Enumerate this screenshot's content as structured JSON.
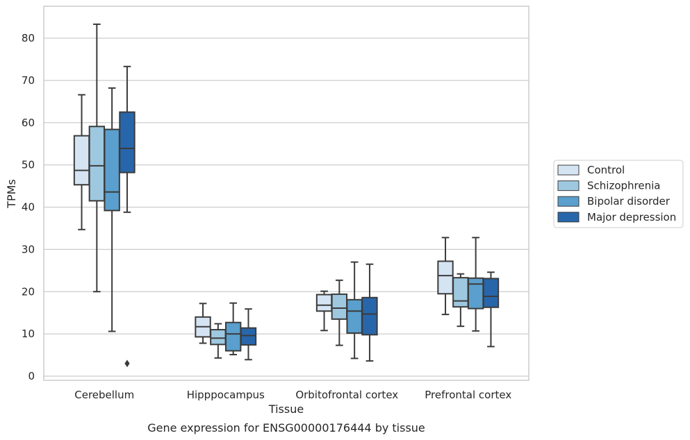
{
  "caption": "Gene expression for ENSG00000176444 by tissue",
  "chart_data": {
    "type": "box",
    "title": "",
    "xlabel": "Tissue",
    "ylabel": "TPMs",
    "ylim": [
      -1,
      88
    ],
    "yticks": [
      0,
      10,
      20,
      30,
      40,
      50,
      60,
      70,
      80
    ],
    "grid": "horizontal",
    "legend_position": "right",
    "categories": [
      "Cerebellum",
      "Hipppocampus",
      "Orbitofrontal cortex",
      "Prefrontal cortex"
    ],
    "series": [
      {
        "name": "Control",
        "color": "#d5e4f3",
        "boxes": [
          {
            "whisker_low": 34.7,
            "q1": 45.3,
            "median": 48.7,
            "q3": 56.9,
            "whisker_high": 66.6,
            "outliers": []
          },
          {
            "whisker_low": 7.8,
            "q1": 9.3,
            "median": 11.7,
            "q3": 14.0,
            "whisker_high": 17.2,
            "outliers": []
          },
          {
            "whisker_low": 10.8,
            "q1": 15.4,
            "median": 16.8,
            "q3": 19.3,
            "whisker_high": 20.1,
            "outliers": []
          },
          {
            "whisker_low": 14.6,
            "q1": 19.5,
            "median": 23.8,
            "q3": 27.2,
            "whisker_high": 32.8,
            "outliers": []
          }
        ]
      },
      {
        "name": "Schizophrenia",
        "color": "#9ec8e0",
        "boxes": [
          {
            "whisker_low": 20.0,
            "q1": 41.5,
            "median": 49.8,
            "q3": 59.1,
            "whisker_high": 83.3,
            "outliers": []
          },
          {
            "whisker_low": 4.3,
            "q1": 7.5,
            "median": 9.0,
            "q3": 11.0,
            "whisker_high": 12.4,
            "outliers": []
          },
          {
            "whisker_low": 7.3,
            "q1": 13.5,
            "median": 16.1,
            "q3": 19.4,
            "whisker_high": 22.7,
            "outliers": []
          },
          {
            "whisker_low": 11.8,
            "q1": 16.4,
            "median": 17.8,
            "q3": 23.3,
            "whisker_high": 24.2,
            "outliers": []
          }
        ]
      },
      {
        "name": "Bipolar disorder",
        "color": "#5a9fcd",
        "boxes": [
          {
            "whisker_low": 10.6,
            "q1": 39.2,
            "median": 43.6,
            "q3": 58.4,
            "whisker_high": 68.2,
            "outliers": []
          },
          {
            "whisker_low": 5.1,
            "q1": 6.0,
            "median": 10.0,
            "q3": 12.7,
            "whisker_high": 17.3,
            "outliers": []
          },
          {
            "whisker_low": 4.2,
            "q1": 10.2,
            "median": 15.4,
            "q3": 18.1,
            "whisker_high": 27.0,
            "outliers": []
          },
          {
            "whisker_low": 10.7,
            "q1": 16.0,
            "median": 21.8,
            "q3": 23.2,
            "whisker_high": 32.8,
            "outliers": []
          }
        ]
      },
      {
        "name": "Major depression",
        "color": "#2866ab",
        "boxes": [
          {
            "whisker_low": 38.8,
            "q1": 48.2,
            "median": 53.9,
            "q3": 62.5,
            "whisker_high": 73.3,
            "outliers": [
              3.0
            ]
          },
          {
            "whisker_low": 3.9,
            "q1": 7.4,
            "median": 9.6,
            "q3": 11.4,
            "whisker_high": 15.9,
            "outliers": []
          },
          {
            "whisker_low": 3.6,
            "q1": 9.8,
            "median": 14.7,
            "q3": 18.6,
            "whisker_high": 26.5,
            "outliers": []
          },
          {
            "whisker_low": 7.0,
            "q1": 16.3,
            "median": 18.9,
            "q3": 23.1,
            "whisker_high": 24.6,
            "outliers": []
          }
        ]
      }
    ]
  }
}
